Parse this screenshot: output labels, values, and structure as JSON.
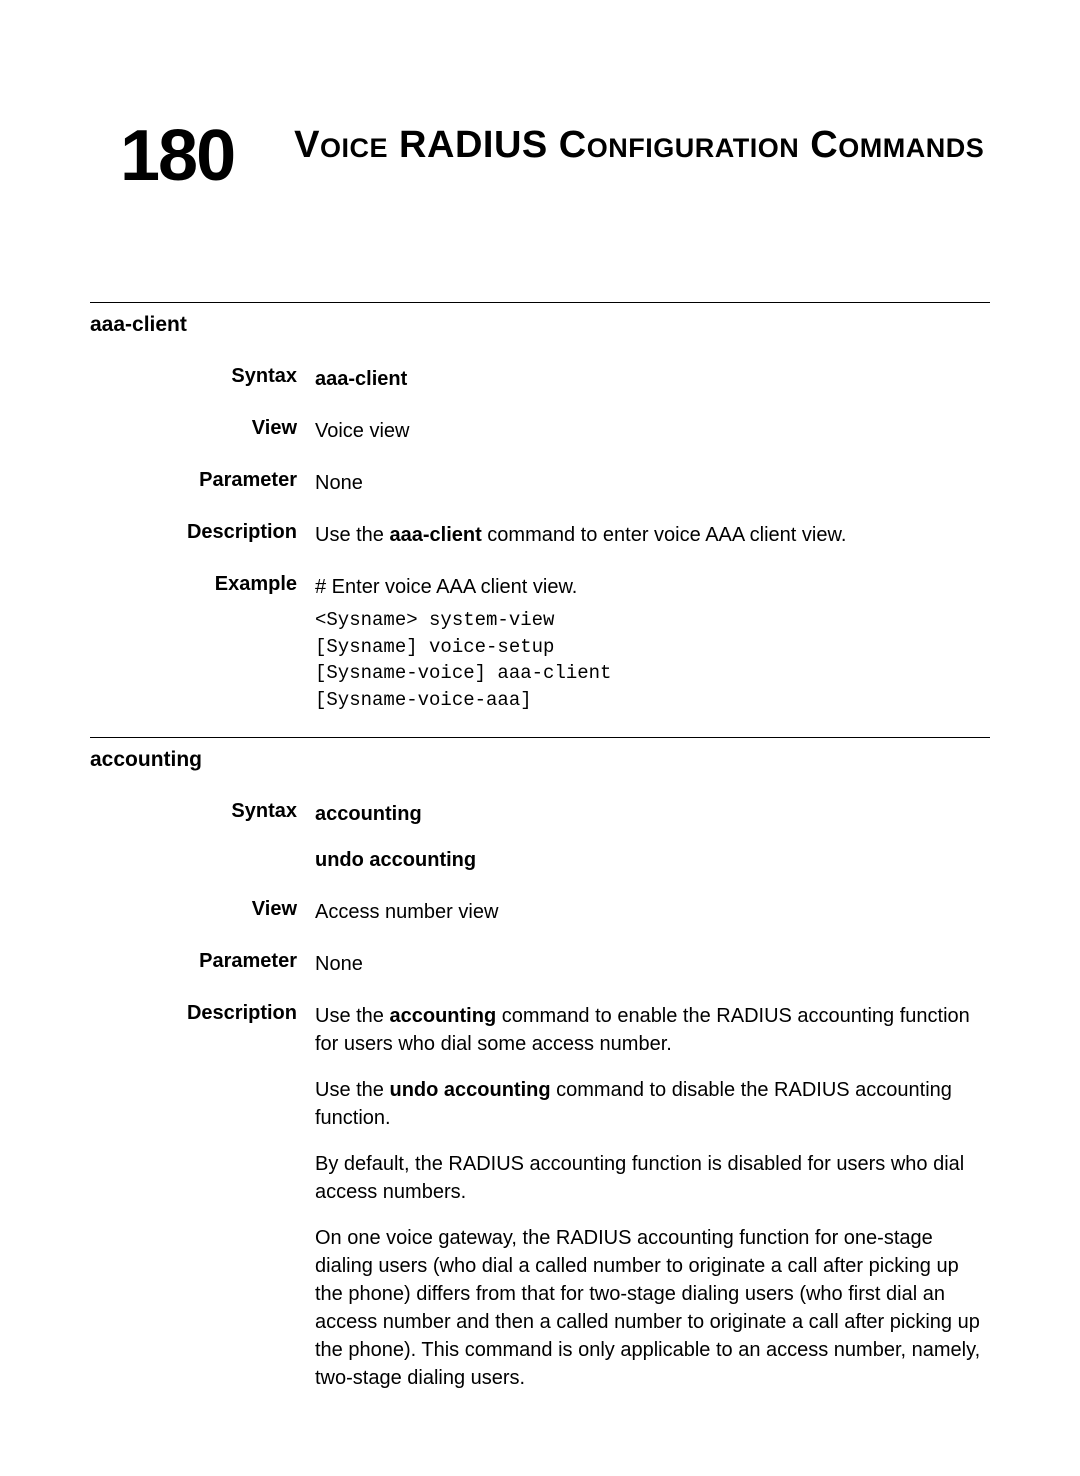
{
  "chapter": {
    "number": "180",
    "title": "Voice RADIUS Configuration Commands"
  },
  "sections": [
    {
      "id": "aaa-client",
      "title": "aaa-client",
      "entries": {
        "syntax": {
          "label": "Syntax",
          "lines": [
            "aaa-client"
          ]
        },
        "view": {
          "label": "View",
          "text": "Voice view"
        },
        "parameter": {
          "label": "Parameter",
          "text": "None"
        },
        "description": {
          "label": "Description",
          "pre": "Use the ",
          "bold": "aaa-client",
          "post": " command to enter voice AAA client view."
        },
        "example": {
          "label": "Example",
          "intro": "# Enter voice AAA client view.",
          "code": "<Sysname> system-view\n[Sysname] voice-setup\n[Sysname-voice] aaa-client\n[Sysname-voice-aaa]"
        }
      }
    },
    {
      "id": "accounting",
      "title": "accounting",
      "entries": {
        "syntax": {
          "label": "Syntax",
          "lines": [
            "accounting",
            "undo accounting"
          ]
        },
        "view": {
          "label": "View",
          "text": "Access number view"
        },
        "parameter": {
          "label": "Parameter",
          "text": "None"
        },
        "description": {
          "label": "Description",
          "p1_pre": "Use the ",
          "p1_bold": "accounting",
          "p1_post": " command to enable the RADIUS accounting function for users who dial some access number.",
          "p2_pre": "Use the ",
          "p2_bold": "undo accounting",
          "p2_post": " command to disable the RADIUS accounting function.",
          "p3": "By default, the RADIUS accounting function is disabled for users who dial access numbers.",
          "p4": "On one voice gateway, the RADIUS accounting function for one-stage dialing users (who dial a called number to originate a call after picking up the phone) differs from that for two-stage dialing users (who first dial an access number and then a called number to originate a call after picking up the phone). This command is only applicable to an access number, namely, two-stage dialing users."
        }
      }
    }
  ],
  "style": {
    "text_color": "#000000",
    "background": "#ffffff",
    "chapter_number_fontsize": 72,
    "chapter_title_fontsize": 38,
    "body_fontsize": 20,
    "code_fontsize": 19,
    "rule_color": "#000000"
  }
}
